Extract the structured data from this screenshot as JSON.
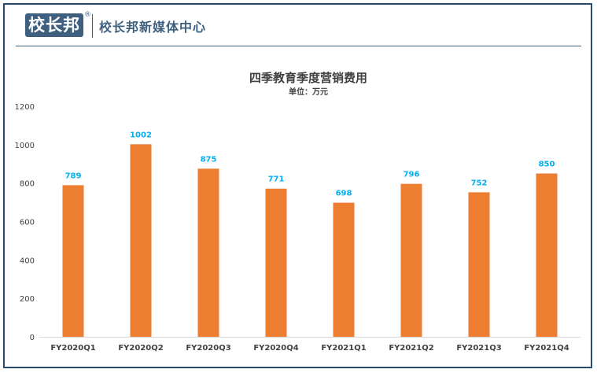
{
  "brand": {
    "logo_text": "校长邦",
    "registered_mark": "®",
    "name": "校长邦新媒体中心"
  },
  "colors": {
    "brand": "#3f5f7f",
    "bar": "#ed7d31",
    "data_label": "#00b0f0",
    "axis_text": "#404040"
  },
  "chart_data": {
    "type": "bar",
    "title": "四季教育季度营销费用",
    "subtitle": "单位：万元",
    "categories": [
      "FY2020Q1",
      "FY2020Q2",
      "FY2020Q3",
      "FY2020Q4",
      "FY2021Q1",
      "FY2021Q2",
      "FY2021Q3",
      "FY2021Q4"
    ],
    "values": [
      789,
      1002,
      875,
      771,
      698,
      796,
      752,
      850
    ],
    "ylim": [
      0,
      1200
    ],
    "yticks": [
      0,
      200,
      400,
      600,
      800,
      1000,
      1200
    ],
    "grid": false,
    "legend": "none"
  }
}
